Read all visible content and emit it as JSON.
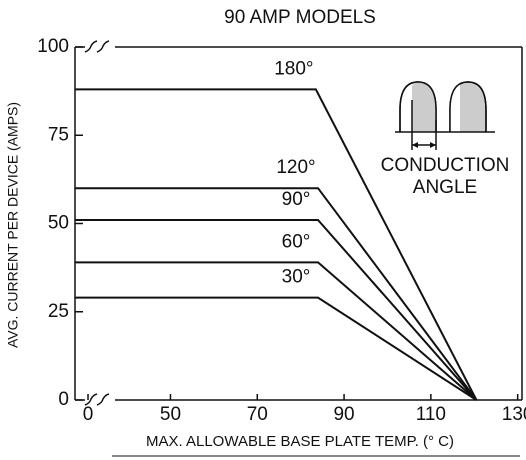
{
  "chart_data": {
    "type": "line",
    "title": "90 AMP MODELS",
    "xlabel": "MAX. ALLOWABLE BASE PLATE TEMP. (° C)",
    "ylabel": "AVG. CURRENT PER DEVICE (AMPS)",
    "xlim": [
      28,
      131
    ],
    "ylim": [
      0,
      100
    ],
    "xticks": [
      {
        "value": 31,
        "label": "0"
      },
      50,
      70,
      90,
      110,
      130
    ],
    "yticks": [
      0,
      25,
      50,
      75,
      100
    ],
    "axis_break": true,
    "grid": false,
    "annotations": [
      "CONDUCTION",
      "ANGLE"
    ],
    "series": [
      {
        "name": "180°",
        "color": "#111",
        "x": [
          28,
          83.5,
          120.5
        ],
        "values": [
          88,
          88,
          0
        ]
      },
      {
        "name": "120°",
        "color": "#111",
        "x": [
          28,
          84,
          120.5
        ],
        "values": [
          60,
          60,
          0
        ]
      },
      {
        "name": "90°",
        "color": "#111",
        "x": [
          28,
          84,
          120.5
        ],
        "values": [
          51,
          51,
          0
        ]
      },
      {
        "name": "60°",
        "color": "#111",
        "x": [
          28,
          84,
          120.5
        ],
        "values": [
          39,
          39,
          0
        ]
      },
      {
        "name": "30°",
        "color": "#111",
        "x": [
          28,
          84,
          120.5
        ],
        "values": [
          29,
          29,
          0
        ]
      }
    ]
  }
}
